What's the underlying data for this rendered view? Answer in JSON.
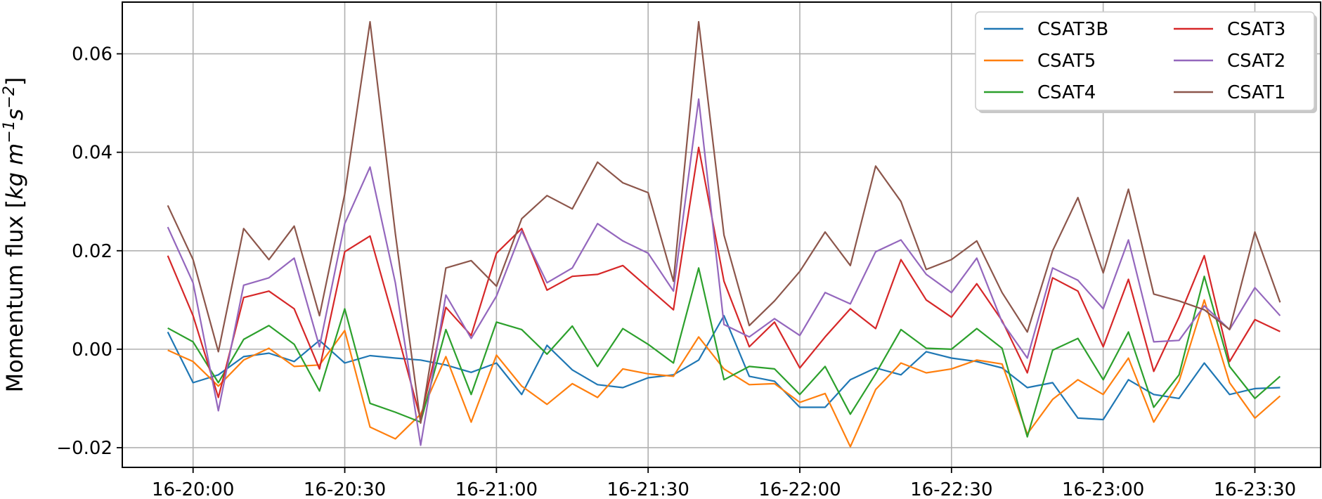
{
  "chart_data": {
    "type": "line",
    "ylabel": "Momentum flux [kg m^-1 s^-2]",
    "xlabel": "",
    "x_tick_labels": [
      "16-20:00",
      "16-20:30",
      "16-21:00",
      "16-21:30",
      "16-22:00",
      "16-22:30",
      "16-23:00",
      "16-23:30"
    ],
    "y_ticks": [
      -0.02,
      0.0,
      0.02,
      0.04,
      0.06
    ],
    "y_tick_labels": [
      "−0.02",
      "0.00",
      "0.02",
      "0.04",
      "0.06"
    ],
    "ylim": [
      -0.024,
      0.0705
    ],
    "x_start": "16-19:55",
    "x_step_minutes": 5,
    "xlim": [
      "16-19:46",
      "16-23:43"
    ],
    "grid": true,
    "legend_position": "top-right",
    "legend_columns": 2,
    "series": [
      {
        "name": "CSAT3B",
        "color": "#1f77b4",
        "values": [
          0.0035,
          -0.0068,
          -0.0052,
          -0.0015,
          -0.0008,
          -0.0025,
          0.0018,
          -0.0028,
          -0.0013,
          -0.0018,
          -0.0022,
          -0.0032,
          -0.0047,
          -0.0028,
          -0.0092,
          0.0008,
          -0.0042,
          -0.0072,
          -0.0078,
          -0.0058,
          -0.0052,
          -0.0022,
          0.0068,
          -0.0055,
          -0.0065,
          -0.0118,
          -0.0118,
          -0.0062,
          -0.0038,
          -0.0052,
          -0.0005,
          -0.0018,
          -0.0025,
          -0.0038,
          -0.0078,
          -0.0068,
          -0.014,
          -0.0143,
          -0.0062,
          -0.0092,
          -0.01,
          -0.0028,
          -0.0092,
          -0.008,
          -0.0078
        ]
      },
      {
        "name": "CSAT5",
        "color": "#ff7f0e",
        "values": [
          -0.0002,
          -0.0025,
          -0.0075,
          -0.0022,
          0.0002,
          -0.0035,
          -0.0032,
          0.0038,
          -0.0158,
          -0.0182,
          -0.0132,
          -0.0015,
          -0.0148,
          -0.0012,
          -0.0075,
          -0.0112,
          -0.007,
          -0.0098,
          -0.004,
          -0.005,
          -0.0055,
          0.0025,
          -0.004,
          -0.0072,
          -0.007,
          -0.0108,
          -0.009,
          -0.0198,
          -0.0082,
          -0.0028,
          -0.0048,
          -0.004,
          -0.0022,
          -0.003,
          -0.0172,
          -0.0102,
          -0.0062,
          -0.0092,
          -0.0018,
          -0.0148,
          -0.0065,
          0.01,
          -0.0068,
          -0.014,
          -0.0095
        ]
      },
      {
        "name": "CSAT4",
        "color": "#2ca02c",
        "values": [
          0.0043,
          0.0015,
          -0.0068,
          0.002,
          0.0048,
          0.001,
          -0.0085,
          0.0082,
          -0.011,
          -0.0128,
          -0.0148,
          0.004,
          -0.0092,
          0.0055,
          0.004,
          -0.001,
          0.0047,
          -0.0035,
          0.0042,
          0.001,
          -0.0028,
          0.0165,
          -0.0062,
          -0.0035,
          -0.004,
          -0.0092,
          -0.0035,
          -0.0132,
          -0.005,
          0.004,
          0.0002,
          0.0,
          0.0042,
          0.0002,
          -0.0178,
          -0.0002,
          0.0022,
          -0.0062,
          0.0035,
          -0.0118,
          -0.0052,
          0.0148,
          -0.0035,
          -0.01,
          -0.0055
        ]
      },
      {
        "name": "CSAT3",
        "color": "#d62728",
        "values": [
          0.019,
          0.0068,
          -0.0098,
          0.0105,
          0.0118,
          0.0082,
          -0.004,
          0.0198,
          0.023,
          0.0048,
          -0.0142,
          0.0085,
          0.0028,
          0.0195,
          0.0245,
          0.012,
          0.0148,
          0.0152,
          0.017,
          0.0125,
          0.008,
          0.041,
          0.0138,
          0.0005,
          0.0055,
          -0.0038,
          0.0025,
          0.0082,
          0.0042,
          0.0182,
          0.01,
          0.0065,
          0.0133,
          0.0058,
          -0.0048,
          0.0145,
          0.0118,
          0.0005,
          0.0142,
          -0.0045,
          0.0065,
          0.019,
          -0.0025,
          0.006,
          0.0036
        ]
      },
      {
        "name": "CSAT2",
        "color": "#9467bd",
        "values": [
          0.0248,
          0.0135,
          -0.0125,
          0.013,
          0.0145,
          0.0185,
          0.0005,
          0.0255,
          0.037,
          0.0135,
          -0.0195,
          0.011,
          0.0022,
          0.0108,
          0.024,
          0.0135,
          0.0165,
          0.0255,
          0.022,
          0.0195,
          0.0118,
          0.0508,
          0.005,
          0.0025,
          0.0062,
          0.0028,
          0.0115,
          0.0092,
          0.0198,
          0.0222,
          0.0152,
          0.0115,
          0.0185,
          0.0055,
          -0.0018,
          0.0165,
          0.014,
          0.0082,
          0.0222,
          0.0015,
          0.0018,
          0.0088,
          0.004,
          0.0125,
          0.0068
        ]
      },
      {
        "name": "CSAT1",
        "color": "#8c564b",
        "values": [
          0.0292,
          0.0182,
          -0.0005,
          0.0245,
          0.0182,
          0.025,
          0.0068,
          0.0315,
          0.0665,
          0.0235,
          -0.015,
          0.0165,
          0.018,
          0.0128,
          0.0265,
          0.0312,
          0.0285,
          0.038,
          0.0338,
          0.0318,
          0.0138,
          0.0665,
          0.0232,
          0.0048,
          0.0098,
          0.0158,
          0.0238,
          0.017,
          0.0372,
          0.03,
          0.0162,
          0.0182,
          0.022,
          0.0115,
          0.0035,
          0.02,
          0.0308,
          0.0155,
          0.0325,
          0.0112,
          0.0098,
          0.008,
          0.004,
          0.0238,
          0.0095
        ]
      }
    ]
  }
}
